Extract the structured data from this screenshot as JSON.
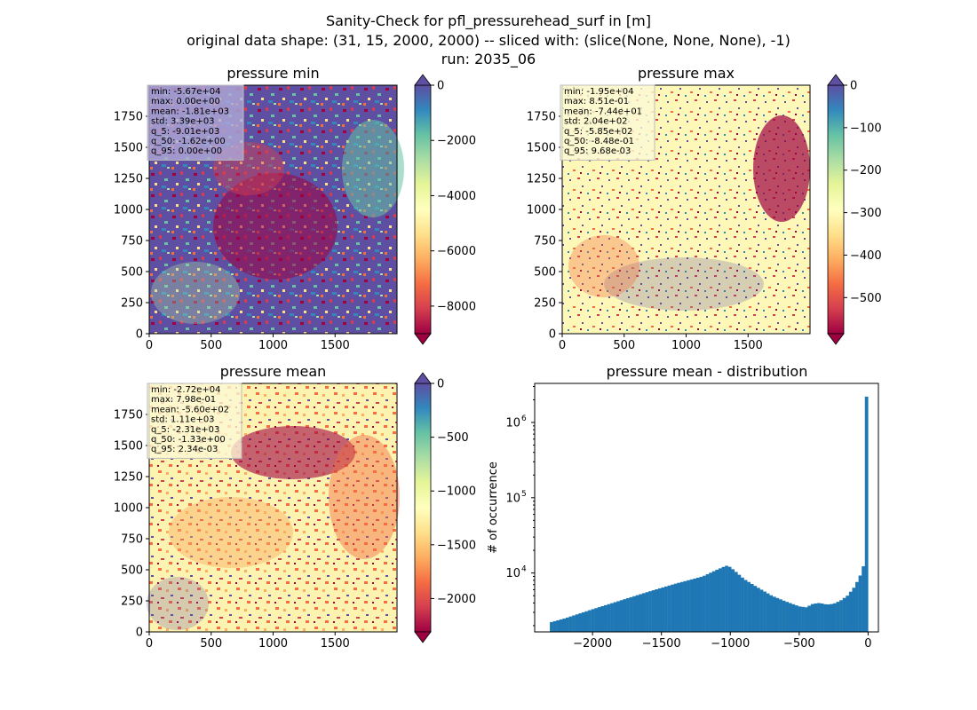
{
  "figure": {
    "suptitle_lines": [
      "Sanity-Check for pfl_pressurehead_surf in [m]",
      "original data shape: (31, 15, 2000, 2000) -- sliced with: (slice(None, None, None), -1)",
      "run: 2035_06"
    ]
  },
  "chart_data": [
    {
      "type": "heatmap",
      "title": "pressure min",
      "xlim": [
        0,
        2000
      ],
      "ylim": [
        0,
        2000
      ],
      "xticks": [
        0,
        500,
        1000,
        1500
      ],
      "yticks": [
        0,
        250,
        500,
        750,
        1000,
        1250,
        1500,
        1750
      ],
      "colormap": "Spectral",
      "colorbar": {
        "range": [
          -9000,
          0
        ],
        "ticks": [
          0,
          -2000,
          -4000,
          -6000,
          -8000
        ],
        "tick_labels": [
          "0",
          "−2000",
          "−4000",
          "−6000",
          "−8000"
        ],
        "extend": "both"
      },
      "stats": [
        "min: -5.67e+04",
        "max: 0.00e+00",
        "mean: -1.81e+03",
        "std: 3.39e+03",
        "q_5: -9.01e+03",
        "q_50: -1.62e+00",
        "q_95: 0.00e+00"
      ],
      "stats_box_bg": "#b0aad8"
    },
    {
      "type": "heatmap",
      "title": "pressure max",
      "xlim": [
        0,
        2000
      ],
      "ylim": [
        0,
        2000
      ],
      "xticks": [
        0,
        500,
        1000,
        1500
      ],
      "yticks": [
        0,
        250,
        500,
        750,
        1000,
        1250,
        1500,
        1750
      ],
      "colormap": "Spectral",
      "colorbar": {
        "range": [
          -585,
          0
        ],
        "ticks": [
          0,
          -100,
          -200,
          -300,
          -400,
          -500
        ],
        "tick_labels": [
          "0",
          "−100",
          "−200",
          "−300",
          "−400",
          "−500"
        ],
        "extend": "both"
      },
      "stats": [
        "min: -1.95e+04",
        "max: 8.51e-01",
        "mean: -7.44e+01",
        "std: 2.04e+02",
        "q_5: -5.85e+02",
        "q_50: -8.48e-01",
        "q_95: 9.68e-03"
      ],
      "stats_box_bg": "#fbf8d4"
    },
    {
      "type": "heatmap",
      "title": "pressure mean",
      "xlim": [
        0,
        2000
      ],
      "ylim": [
        0,
        2000
      ],
      "xticks": [
        0,
        500,
        1000,
        1500
      ],
      "yticks": [
        0,
        250,
        500,
        750,
        1000,
        1250,
        1500,
        1750
      ],
      "colormap": "Spectral",
      "colorbar": {
        "range": [
          -2310,
          0
        ],
        "ticks": [
          0,
          -500,
          -1000,
          -1500,
          -2000
        ],
        "tick_labels": [
          "0",
          "−500",
          "−1000",
          "−1500",
          "−2000"
        ],
        "extend": "both"
      },
      "stats": [
        "min: -2.72e+04",
        "max: 7.98e-01",
        "mean: -5.60e+02",
        "std: 1.11e+03",
        "q_5: -2.31e+03",
        "q_50: -1.33e+00",
        "q_95: 2.34e-03"
      ],
      "stats_box_bg": "#fbf8d4"
    },
    {
      "type": "bar",
      "title": "pressure mean - distribution",
      "ylabel": "# of occurrence",
      "xlabel": "",
      "yscale": "log",
      "xlim": [
        -2420,
        75
      ],
      "ylim": [
        1650,
        3300000
      ],
      "xticks": [
        -2000,
        -1500,
        -1000,
        -500,
        0
      ],
      "xtick_labels": [
        "−2000",
        "−1500",
        "−1000",
        "−500",
        "0"
      ],
      "yticks": [
        10000,
        100000,
        1000000
      ],
      "ytick_base": "10",
      "ytick_exps": [
        "4",
        "5",
        "6"
      ],
      "bar_color": "#1f77b4",
      "bin_range": [
        -2310,
        0
      ],
      "n_bins": 100,
      "profile_x": [
        -2310,
        -2200,
        -2000,
        -1800,
        -1600,
        -1400,
        -1200,
        -1100,
        -1030,
        -1000,
        -950,
        -900,
        -800,
        -700,
        -600,
        -500,
        -450,
        -400,
        -350,
        -300,
        -250,
        -200,
        -150,
        -100,
        -60,
        -30,
        -15,
        -5,
        0
      ],
      "profile_y": [
        2200,
        2500,
        3300,
        4300,
        5600,
        7200,
        9000,
        11000,
        12500,
        12000,
        10000,
        8300,
        6400,
        5000,
        4200,
        3600,
        3500,
        3900,
        4000,
        3800,
        3900,
        4300,
        5000,
        6500,
        9000,
        13000,
        18000,
        26000,
        2200000
      ]
    }
  ]
}
